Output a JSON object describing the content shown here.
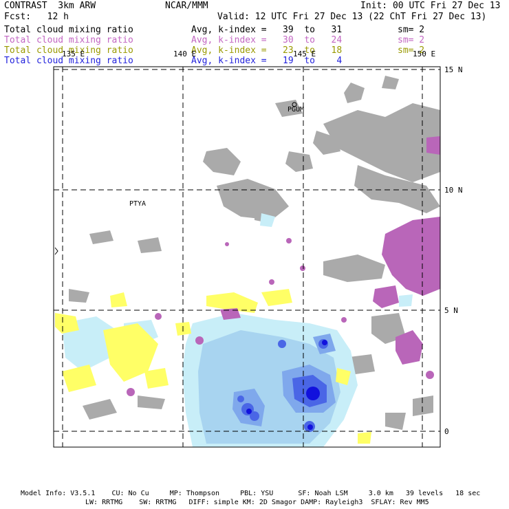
{
  "header": {
    "model": "CONTRAST  3km ARW",
    "org": "NCAR/MMM",
    "init": "Init: 00 UTC Fri 27 Dec 13",
    "fcst": "Fcst:   12 h",
    "valid": "Valid: 12 UTC Fri 27 Dec 13 (22 ChT Fri 27 Dec 13)"
  },
  "legend": [
    {
      "label": "Total cloud mixing ratio",
      "range": "Avg, k-index =   39  to   31",
      "sm": "sm= 2",
      "color": "#000000"
    },
    {
      "label": "Total cloud mixing ratio",
      "range": "Avg, k-index =   30  to   24",
      "sm": "sm= 2",
      "color": "#c266c2"
    },
    {
      "label": "Total cloud mixing ratio",
      "range": "Avg, k-index =   23  to   18",
      "sm": "sm= 2",
      "color": "#999900"
    },
    {
      "label": "Total cloud mixing ratio",
      "range": "Avg, k-index =   19  to    4",
      "sm": "",
      "color": "#2222dd"
    }
  ],
  "map": {
    "lon_labels": [
      "135 E",
      "140 E",
      "145 E",
      "150 E"
    ],
    "lat_labels": [
      "15 N",
      "10 N",
      "5 N",
      "0"
    ],
    "stations": [
      "PGUM",
      "PTYA"
    ],
    "colors": {
      "gray": "#aaaaaa",
      "pink": "#b966b9",
      "yellow": "#ffff66",
      "light_blue": "#c8eef8",
      "blue1": "#a8d4f0",
      "blue2": "#7fa8ec",
      "blue3": "#4a66e6",
      "blue4": "#1111dd"
    }
  },
  "footer": {
    "line1": "Model Info: V3.5.1    CU: No Cu     MP: Thompson     PBL: YSU      SF: Noah LSM     3.0 km   39 levels   18 sec",
    "line2": "LW: RRTMG    SW: RRTMG   DIFF: simple KM: 2D Smagor DAMP: Rayleigh3  SFLAY: Rev MM5"
  }
}
